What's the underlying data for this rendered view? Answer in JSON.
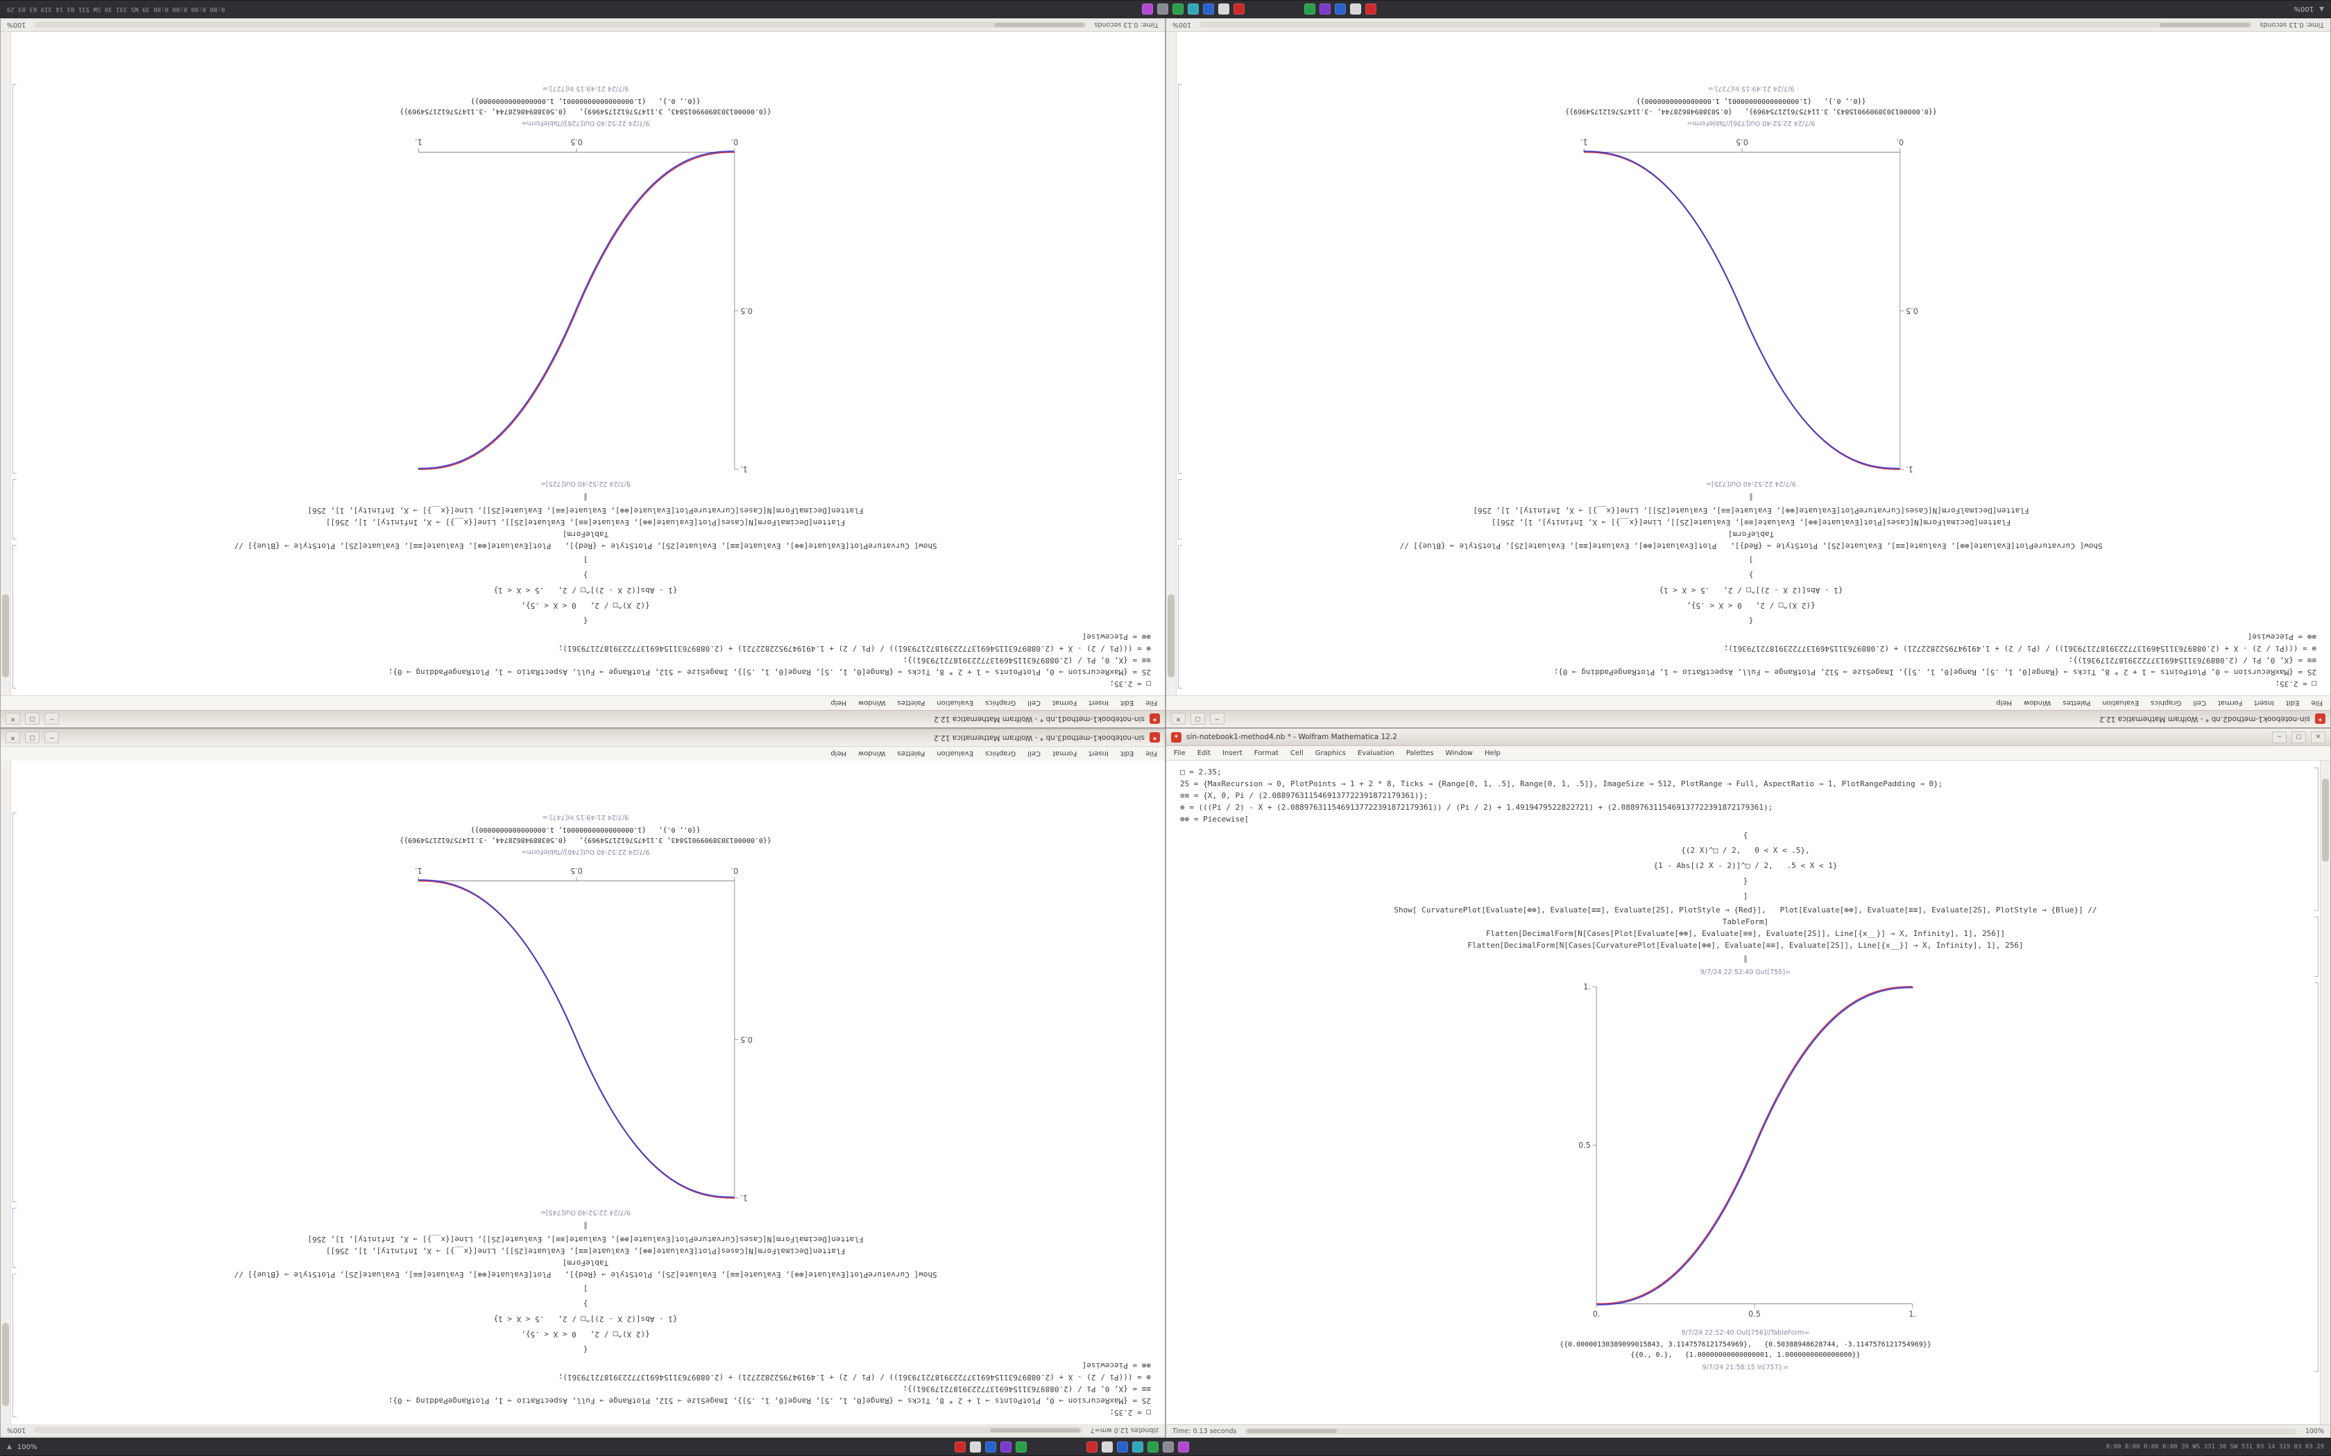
{
  "taskbar": {
    "caret": "▲",
    "left_label": "100%",
    "monitor_text": "0:00 0:00 0:00 0:00  39 WS 331 30 SW 531 03 14 319 03 03 29",
    "cluster_a": [
      {
        "name": "red-app-icon",
        "color": "#cc2a2a"
      },
      {
        "name": "gray-app-icon",
        "color": "#d8d8d8"
      },
      {
        "name": "blue-app-icon",
        "color": "#2a62cc"
      },
      {
        "name": "purple-app-icon",
        "color": "#7a3acc"
      },
      {
        "name": "green-app-icon",
        "color": "#2aa04a"
      }
    ],
    "cluster_b": [
      {
        "name": "red-app-icon",
        "color": "#cc2a2a"
      },
      {
        "name": "gray-app-icon",
        "color": "#d8d8d8"
      },
      {
        "name": "blue-app-icon",
        "color": "#2a62cc"
      },
      {
        "name": "teal-app-icon",
        "color": "#30a8b8"
      },
      {
        "name": "green-app-icon",
        "color": "#2aa04a"
      },
      {
        "name": "slate-app-icon",
        "color": "#8a8a92"
      },
      {
        "name": "violet-app-icon",
        "color": "#b04ad0"
      }
    ]
  },
  "chrome": {
    "app_icon_glyph": "✶",
    "buttons": [
      "─",
      "▢",
      "✕"
    ]
  },
  "notebook": {
    "menu": [
      "File",
      "Edit",
      "Insert",
      "Format",
      "Cell",
      "Graphics",
      "Evaluation",
      "Palettes",
      "Window",
      "Help"
    ],
    "code_lines": [
      "□ = 2.35;",
      "2S = {MaxRecursion → 0, PlotPoints → 1 + 2 * 8, Ticks → {Range[0, 1, .5], Range[0, 1, .5]}, ImageSize → 512, PlotRange → Full, AspectRatio → 1, PlotRangePadding → 0};",
      "≡≡ = {X, 0, Pi / (2.0889763115469137722391872179361)};",
      "⊕ = (((Pi / 2) - X + (2.0889763115469137722391872179361)) / (Pi / 2) + 1.4919479522822721) + (2.0889763115469137722391872179361);",
      "⊕⊕ = Piecewise["
    ],
    "piecewise_lines": [
      "{",
      "{(2 X)^□ / 2,   0 < X < .5},",
      "{1 - Abs[(2 X - 2)]^□ / 2,   .5 < X < 1}",
      "}",
      "]"
    ],
    "show_line": "Show[ CurvaturePlot[Evaluate[⊕⊕], Evaluate[≡≡], Evaluate[2S], PlotStyle → {Red}],   Plot[Evaluate[⊕⊕], Evaluate[≡≡], Evaluate[2S], PlotStyle → {Blue}] //",
    "tableform_line": "TableForm]",
    "flatten_line_1": "Flatten[DecimalForm[N[Cases[Plot[Evaluate[⊕⊕], Evaluate[≡≡], Evaluate[2S]], Line[{x__}] → X, Infinity], 1], 256]]",
    "flatten_line_2": "Flatten[DecimalForm[N[Cases[CurvaturePlot[Evaluate[⊕⊕], Evaluate[≡≡], Evaluate[2S]], Line[{x__}] → X, Infinity], 1], 256]",
    "divider_glyph": "‖",
    "table_rows": [
      "{{0.00000130389099015843, 3.1147576121754969},   {0.50388948628744, -3.1147576121754969}}",
      "{{0., 0.},   {1.00000000000000001, 1.0000000000000000}}"
    ]
  },
  "panes": [
    {
      "id": "tl",
      "position": "top-left",
      "rotated": true,
      "flip_order": false,
      "title": "sin-notebook1-method1.nb * - Wolfram Mathematica 12.2",
      "out_label_plot": "9/7/24 22:52:40  Out[725]=",
      "out_label_table": "9/7/24 22:52:40  Out[726]//TableForm=",
      "in_label": "9/7/24 21:49:15  In[727]:=",
      "status_left": "Time: 0.13 seconds",
      "zoom": "100%"
    },
    {
      "id": "tr",
      "position": "top-right",
      "rotated": true,
      "flip_order": false,
      "title": "sin-notebook1-method2.nb * - Wolfram Mathematica 12.2",
      "out_label_plot": "9/7/24 22:52:40  Out[735]=",
      "out_label_table": "9/7/24 22:52:40  Out[736]//TableForm=",
      "in_label": "9/7/24 21:49:15  In[737]:=",
      "status_left": "Time: 0.13 seconds",
      "zoom": "100%"
    },
    {
      "id": "bl",
      "position": "bottom-left",
      "rotated": true,
      "flip_order": true,
      "title": "sin-notebook1-method3.nb * - Wolfram Mathematica 12.2",
      "out_label_plot": "9/7/24 22:52:40  Out[745]=",
      "out_label_table": "9/7/24 22:52:40  Out[746]//TableForm=",
      "in_label": "9/7/24 21:49:15  In[747]:=",
      "status_left": "zibnotes 12.0 wm=7",
      "zoom": "100%"
    },
    {
      "id": "br",
      "position": "bottom-right",
      "rotated": false,
      "flip_order": false,
      "title": "sin-notebook1-method4.nb * - Wolfram Mathematica 12.2",
      "out_label_plot": "9/7/24 22:52:40  Out[755]=",
      "out_label_table": "9/7/24 22:52:40  Out[756]//TableForm=",
      "in_label": "9/7/24 21:58:15  In[757]:=",
      "status_left": "Time: 0.13 seconds",
      "zoom": "100%"
    }
  ],
  "chart_data": [
    {
      "type": "line",
      "pane": "top-left",
      "direction": "increasing",
      "exponent": 2.35,
      "image_size": 512,
      "x_range": [
        0,
        1
      ],
      "y_range": [
        0,
        1
      ],
      "x_tick_values": [
        0,
        0.5,
        1
      ],
      "x_tick_labels": [
        "0.",
        "0.5",
        "1."
      ],
      "y_tick_values": [
        0.5,
        1
      ],
      "y_tick_labels": [
        "0.5",
        "1."
      ],
      "grid": false,
      "legend": "none",
      "series": [
        {
          "name": "CurvaturePlot (Red)",
          "color": "#cc2233"
        },
        {
          "name": "Plot (Blue)",
          "color": "#3333cc"
        }
      ],
      "points": [
        [
          0,
          0
        ],
        [
          0.1,
          0.0114
        ],
        [
          0.2,
          0.058
        ],
        [
          0.3,
          0.1505
        ],
        [
          0.4,
          0.296
        ],
        [
          0.5,
          0.5
        ],
        [
          0.6,
          0.704
        ],
        [
          0.7,
          0.8495
        ],
        [
          0.8,
          0.942
        ],
        [
          0.9,
          0.9886
        ],
        [
          1,
          1
        ]
      ]
    },
    {
      "type": "line",
      "pane": "top-right",
      "direction": "decreasing",
      "exponent": 2.35,
      "image_size": 512,
      "x_range": [
        0,
        1
      ],
      "y_range": [
        0,
        1
      ],
      "x_tick_values": [
        0,
        0.5,
        1
      ],
      "x_tick_labels": [
        "0.",
        "0.5",
        "1."
      ],
      "y_tick_values": [
        0.5,
        1
      ],
      "y_tick_labels": [
        "0.5",
        "1."
      ],
      "grid": false,
      "legend": "none",
      "series": [
        {
          "name": "CurvaturePlot (Red)",
          "color": "#cc2233"
        },
        {
          "name": "Plot (Blue)",
          "color": "#3333cc"
        }
      ],
      "points": [
        [
          0,
          1
        ],
        [
          0.1,
          0.9886
        ],
        [
          0.2,
          0.942
        ],
        [
          0.3,
          0.8495
        ],
        [
          0.4,
          0.704
        ],
        [
          0.5,
          0.5
        ],
        [
          0.6,
          0.296
        ],
        [
          0.7,
          0.1505
        ],
        [
          0.8,
          0.058
        ],
        [
          0.9,
          0.0114
        ],
        [
          1,
          0
        ]
      ]
    },
    {
      "type": "line",
      "pane": "bottom-left",
      "direction": "decreasing",
      "exponent": 2.35,
      "image_size": 512,
      "x_range": [
        0,
        1
      ],
      "y_range": [
        0,
        1
      ],
      "x_tick_values": [
        0,
        0.5,
        1
      ],
      "x_tick_labels": [
        "0.",
        "0.5",
        "1."
      ],
      "y_tick_values": [
        0.5,
        1
      ],
      "y_tick_labels": [
        "0.5",
        "1."
      ],
      "grid": false,
      "legend": "none",
      "series": [
        {
          "name": "CurvaturePlot (Red)",
          "color": "#cc2233"
        },
        {
          "name": "Plot (Blue)",
          "color": "#3333cc"
        }
      ],
      "points": [
        [
          0,
          1
        ],
        [
          0.1,
          0.9886
        ],
        [
          0.2,
          0.942
        ],
        [
          0.3,
          0.8495
        ],
        [
          0.4,
          0.704
        ],
        [
          0.5,
          0.5
        ],
        [
          0.6,
          0.296
        ],
        [
          0.7,
          0.1505
        ],
        [
          0.8,
          0.058
        ],
        [
          0.9,
          0.0114
        ],
        [
          1,
          0
        ]
      ]
    },
    {
      "type": "line",
      "pane": "bottom-right",
      "direction": "increasing",
      "exponent": 2.35,
      "image_size": 512,
      "x_range": [
        0,
        1
      ],
      "y_range": [
        0,
        1
      ],
      "x_tick_values": [
        0,
        0.5,
        1
      ],
      "x_tick_labels": [
        "0.",
        "0.5",
        "1."
      ],
      "y_tick_values": [
        0.5,
        1
      ],
      "y_tick_labels": [
        "0.5",
        "1."
      ],
      "grid": false,
      "legend": "none",
      "series": [
        {
          "name": "CurvaturePlot (Red)",
          "color": "#cc2233"
        },
        {
          "name": "Plot (Blue)",
          "color": "#3333cc"
        }
      ],
      "points": [
        [
          0,
          0
        ],
        [
          0.1,
          0.0114
        ],
        [
          0.2,
          0.058
        ],
        [
          0.3,
          0.1505
        ],
        [
          0.4,
          0.296
        ],
        [
          0.5,
          0.5
        ],
        [
          0.6,
          0.704
        ],
        [
          0.7,
          0.8495
        ],
        [
          0.8,
          0.942
        ],
        [
          0.9,
          0.9886
        ],
        [
          1,
          1
        ]
      ]
    }
  ]
}
